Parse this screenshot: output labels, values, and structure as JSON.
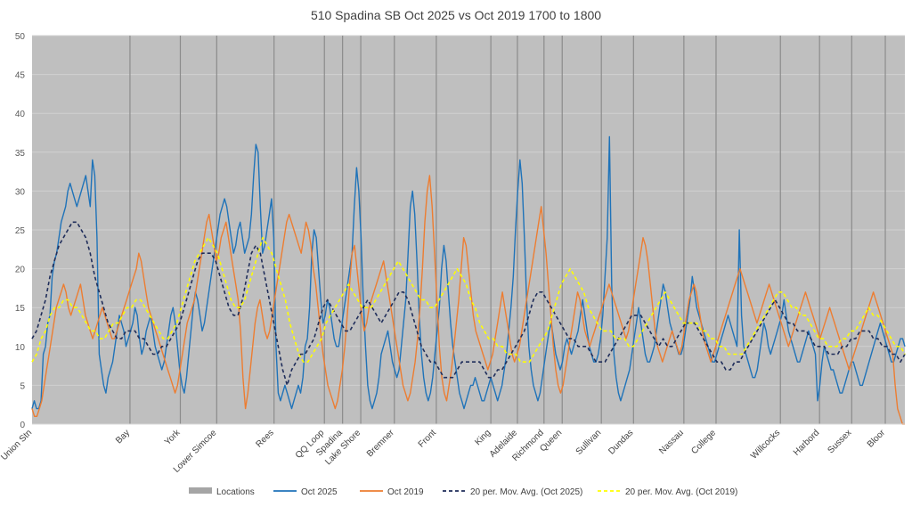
{
  "chart_data": {
    "type": "line",
    "title": "510 Spadina SB Oct 2025 vs Oct 2019 1700 to 1800",
    "xlabel": "",
    "ylabel": "",
    "ylim": [
      0,
      50
    ],
    "yticks": [
      0,
      5,
      10,
      15,
      20,
      25,
      30,
      35,
      40,
      45,
      50
    ],
    "grid": true,
    "legend_position": "bottom",
    "x_index_range": [
      0,
      624
    ],
    "locations": [
      {
        "name": "Union Stn",
        "x": 0
      },
      {
        "name": "Bay",
        "x": 70
      },
      {
        "name": "York",
        "x": 106
      },
      {
        "name": "Lower Simcoe",
        "x": 132
      },
      {
        "name": "Rees",
        "x": 173
      },
      {
        "name": "QQ Loop",
        "x": 209
      },
      {
        "name": "Spadina",
        "x": 222
      },
      {
        "name": "Lake Shore",
        "x": 235
      },
      {
        "name": "Bremner",
        "x": 259
      },
      {
        "name": "Front",
        "x": 289
      },
      {
        "name": "King",
        "x": 328
      },
      {
        "name": "Adelaide",
        "x": 347
      },
      {
        "name": "Richmond",
        "x": 366
      },
      {
        "name": "Queen",
        "x": 379
      },
      {
        "name": "Sullivan",
        "x": 407
      },
      {
        "name": "Dundas",
        "x": 430
      },
      {
        "name": "Nassau",
        "x": 466
      },
      {
        "name": "College",
        "x": 489
      },
      {
        "name": "Willcocks",
        "x": 535
      },
      {
        "name": "Harbord",
        "x": 563
      },
      {
        "name": "Sussex",
        "x": 586
      },
      {
        "name": "Bloor",
        "x": 610
      }
    ],
    "series": [
      {
        "name": "Oct 2025",
        "color": "#1f73b9",
        "values": [
          2,
          3,
          2,
          2,
          3,
          9,
          10,
          13,
          14,
          19,
          21,
          22,
          24,
          26,
          27,
          28,
          30,
          31,
          30,
          29,
          28,
          29,
          30,
          31,
          32,
          30,
          28,
          34,
          32,
          24,
          9,
          7,
          5,
          4,
          6,
          7,
          8,
          10,
          12,
          14,
          13,
          12,
          10,
          11,
          12,
          13,
          15,
          14,
          11,
          9,
          10,
          12,
          13,
          14,
          12,
          10,
          9,
          8,
          7,
          8,
          10,
          12,
          14,
          15,
          13,
          10,
          7,
          5,
          4,
          6,
          9,
          12,
          15,
          17,
          16,
          14,
          12,
          13,
          15,
          17,
          19,
          21,
          23,
          25,
          27,
          28,
          29,
          28,
          26,
          24,
          22,
          23,
          25,
          26,
          24,
          22,
          23,
          24,
          27,
          32,
          36,
          35,
          28,
          22,
          23,
          25,
          27,
          29,
          24,
          10,
          4,
          3,
          4,
          5,
          4,
          3,
          2,
          3,
          4,
          5,
          4,
          6,
          10,
          11,
          15,
          22,
          25,
          24,
          20,
          16,
          13,
          14,
          16,
          15,
          13,
          11,
          10,
          10,
          12,
          14,
          16,
          18,
          20,
          22,
          28,
          33,
          30,
          24,
          16,
          10,
          5,
          3,
          2,
          3,
          4,
          6,
          9,
          10,
          11,
          12,
          10,
          8,
          7,
          6,
          7,
          10,
          13,
          16,
          22,
          28,
          30,
          27,
          21,
          14,
          9,
          6,
          4,
          3,
          4,
          6,
          9,
          12,
          15,
          20,
          23,
          21,
          17,
          13,
          10,
          8,
          6,
          4,
          3,
          2,
          3,
          4,
          5,
          5,
          6,
          5,
          4,
          3,
          3,
          4,
          5,
          6,
          5,
          4,
          3,
          4,
          5,
          7,
          9,
          12,
          15,
          19,
          25,
          30,
          34,
          31,
          24,
          16,
          10,
          7,
          5,
          4,
          3,
          4,
          6,
          8,
          10,
          12,
          13,
          11,
          9,
          8,
          7,
          8,
          10,
          11,
          10,
          9,
          10,
          11,
          12,
          14,
          16,
          14,
          12,
          10,
          9,
          8,
          8,
          9,
          11,
          14,
          19,
          24,
          37,
          18,
          9,
          6,
          4,
          3,
          4,
          5,
          6,
          7,
          9,
          11,
          13,
          15,
          13,
          11,
          9,
          8,
          8,
          9,
          10,
          12,
          14,
          16,
          18,
          17,
          15,
          13,
          12,
          11,
          10,
          9,
          9,
          10,
          12,
          14,
          16,
          19,
          17,
          15,
          14,
          13,
          12,
          11,
          10,
          9,
          8,
          8,
          9,
          10,
          11,
          12,
          13,
          14,
          13,
          12,
          11,
          10,
          25,
          14,
          10,
          9,
          8,
          7,
          6,
          6,
          7,
          9,
          11,
          13,
          12,
          10,
          9,
          10,
          11,
          12,
          13,
          14,
          16,
          14,
          12,
          11,
          10,
          9,
          8,
          8,
          9,
          10,
          11,
          12,
          11,
          10,
          9,
          3,
          5,
          8,
          10,
          9,
          8,
          7,
          7,
          6,
          5,
          4,
          4,
          5,
          6,
          7,
          8,
          8,
          7,
          6,
          5,
          5,
          6,
          7,
          8,
          9,
          10,
          11,
          12,
          13,
          12,
          11,
          10,
          9,
          8,
          8,
          9,
          10,
          11,
          11,
          10
        ]
      },
      {
        "name": "Oct 2019",
        "color": "#ed7d31",
        "values": [
          2,
          1,
          1,
          2,
          3,
          5,
          7,
          9,
          11,
          13,
          15,
          16,
          17,
          18,
          17,
          15,
          14,
          15,
          16,
          17,
          18,
          16,
          14,
          13,
          12,
          11,
          12,
          13,
          14,
          15,
          14,
          13,
          12,
          11,
          11,
          12,
          13,
          14,
          15,
          16,
          17,
          18,
          19,
          20,
          22,
          21,
          19,
          17,
          15,
          14,
          13,
          12,
          11,
          10,
          9,
          8,
          7,
          6,
          5,
          4,
          5,
          7,
          9,
          11,
          13,
          14,
          15,
          16,
          18,
          20,
          22,
          24,
          26,
          27,
          25,
          23,
          21,
          22,
          24,
          25,
          26,
          24,
          22,
          20,
          18,
          16,
          12,
          6,
          2,
          4,
          7,
          10,
          13,
          15,
          16,
          14,
          12,
          11,
          12,
          14,
          16,
          18,
          20,
          22,
          24,
          26,
          27,
          26,
          25,
          24,
          23,
          22,
          24,
          26,
          25,
          23,
          20,
          18,
          15,
          12,
          9,
          7,
          5,
          4,
          3,
          2,
          3,
          5,
          7,
          10,
          14,
          18,
          22,
          23,
          20,
          17,
          14,
          12,
          13,
          15,
          16,
          17,
          18,
          19,
          20,
          21,
          19,
          17,
          15,
          13,
          11,
          9,
          7,
          5,
          4,
          3,
          4,
          6,
          8,
          11,
          15,
          20,
          26,
          30,
          32,
          28,
          22,
          16,
          10,
          6,
          4,
          3,
          5,
          7,
          10,
          13,
          16,
          20,
          24,
          23,
          20,
          17,
          14,
          12,
          11,
          10,
          9,
          8,
          7,
          8,
          9,
          11,
          13,
          15,
          17,
          15,
          13,
          11,
          9,
          8,
          9,
          10,
          12,
          14,
          16,
          18,
          20,
          22,
          24,
          26,
          28,
          25,
          22,
          18,
          14,
          10,
          7,
          5,
          4,
          5,
          7,
          9,
          11,
          13,
          15,
          17,
          16,
          14,
          12,
          11,
          10,
          11,
          12,
          13,
          14,
          15,
          16,
          17,
          18,
          17,
          16,
          15,
          14,
          13,
          12,
          11,
          12,
          14,
          16,
          18,
          20,
          22,
          24,
          23,
          21,
          18,
          15,
          12,
          10,
          9,
          8,
          9,
          10,
          11,
          12,
          11,
          10,
          9,
          10,
          12,
          14,
          16,
          17,
          18,
          17,
          15,
          13,
          11,
          10,
          9,
          8,
          9,
          10,
          11,
          12,
          13,
          14,
          15,
          16,
          17,
          18,
          19,
          20,
          19,
          18,
          17,
          16,
          15,
          14,
          13,
          14,
          15,
          16,
          17,
          18,
          17,
          16,
          15,
          14,
          13,
          12,
          11,
          10,
          11,
          12,
          13,
          14,
          15,
          16,
          17,
          16,
          15,
          14,
          13,
          12,
          11,
          12,
          13,
          14,
          15,
          14,
          13,
          12,
          11,
          10,
          9,
          8,
          7,
          8,
          9,
          10,
          11,
          12,
          13,
          14,
          15,
          16,
          17,
          16,
          15,
          14,
          13,
          12,
          11,
          10,
          9,
          5,
          2,
          1,
          0,
          0
        ]
      },
      {
        "name": "20 per. Mov. Avg. (Oct 2025)",
        "color": "#1f2d5a",
        "dashed": true,
        "values": [
          11,
          12,
          14,
          16,
          19,
          21,
          23,
          24,
          25,
          26,
          26,
          25,
          24,
          22,
          19,
          17,
          15,
          13,
          12,
          11,
          11,
          12,
          12,
          12,
          11,
          11,
          10,
          9,
          9,
          10,
          10,
          11,
          12,
          13,
          15,
          17,
          19,
          21,
          22,
          22,
          22,
          21,
          19,
          17,
          15,
          14,
          14,
          16,
          19,
          22,
          23,
          22,
          19,
          16,
          13,
          10,
          7,
          5,
          7,
          8,
          9,
          9,
          10,
          11,
          13,
          15,
          16,
          15,
          14,
          13,
          12,
          12,
          13,
          14,
          15,
          16,
          15,
          14,
          13,
          14,
          15,
          16,
          17,
          17,
          16,
          14,
          12,
          10,
          9,
          8,
          8,
          7,
          6,
          6,
          6,
          7,
          8,
          8,
          8,
          8,
          8,
          7,
          6,
          6,
          7,
          7,
          8,
          9,
          10,
          11,
          12,
          14,
          16,
          17,
          17,
          16,
          15,
          14,
          13,
          12,
          11,
          11,
          10,
          10,
          10,
          9,
          8,
          8,
          8,
          9,
          10,
          11,
          12,
          13,
          14,
          14,
          14,
          13,
          12,
          11,
          10,
          11,
          10,
          10,
          11,
          12,
          13,
          13,
          13,
          12,
          11,
          10,
          9,
          8,
          8,
          7,
          7,
          8,
          8,
          9,
          10,
          11,
          12,
          13,
          14,
          15,
          16,
          15,
          14,
          13,
          13,
          12,
          12,
          12,
          11,
          10,
          10,
          10,
          9,
          9,
          9,
          10,
          10,
          11,
          11,
          12,
          12,
          12,
          11,
          11,
          10,
          10,
          9,
          9,
          8,
          9
        ]
      },
      {
        "name": "20 per. Mov. Avg. (Oct 2019)",
        "color": "#ffff00",
        "dashed": true,
        "values": [
          8,
          9,
          11,
          12,
          14,
          15,
          15,
          16,
          16,
          15,
          15,
          14,
          13,
          12,
          12,
          11,
          11,
          12,
          13,
          13,
          14,
          15,
          15,
          16,
          16,
          15,
          14,
          13,
          12,
          11,
          11,
          12,
          13,
          15,
          17,
          19,
          21,
          22,
          23,
          24,
          23,
          22,
          20,
          18,
          16,
          15,
          15,
          16,
          18,
          20,
          22,
          24,
          23,
          22,
          20,
          18,
          16,
          13,
          11,
          9,
          8,
          8,
          9,
          10,
          11,
          13,
          14,
          15,
          16,
          17,
          18,
          17,
          16,
          15,
          15,
          15,
          16,
          17,
          18,
          19,
          20,
          21,
          20,
          19,
          18,
          17,
          16,
          16,
          15,
          15,
          16,
          17,
          18,
          19,
          20,
          19,
          18,
          16,
          15,
          13,
          12,
          11,
          11,
          10,
          10,
          9,
          9,
          9,
          8,
          8,
          8,
          9,
          10,
          11,
          12,
          14,
          16,
          18,
          19,
          20,
          19,
          18,
          17,
          15,
          14,
          13,
          12,
          12,
          12,
          11,
          11,
          11,
          10,
          10,
          11,
          12,
          13,
          14,
          15,
          16,
          17,
          16,
          15,
          14,
          13,
          13,
          13,
          13,
          12,
          12,
          11,
          11,
          10,
          10,
          9,
          9,
          9,
          9,
          10,
          11,
          12,
          13,
          14,
          15,
          16,
          17,
          17,
          16,
          15,
          15,
          14,
          14,
          13,
          12,
          11,
          11,
          10,
          10,
          10,
          11,
          11,
          12,
          12,
          13,
          14,
          15,
          14,
          14,
          13,
          12,
          11,
          10,
          10,
          9
        ]
      }
    ]
  },
  "legend": {
    "items": [
      {
        "label": "Locations",
        "color": "#a5a5a5",
        "style": "bar"
      },
      {
        "label": "Oct 2025",
        "color": "#1f73b9",
        "style": "line"
      },
      {
        "label": "Oct 2019",
        "color": "#ed7d31",
        "style": "line"
      },
      {
        "label": "20 per. Mov. Avg. (Oct 2025)",
        "color": "#1f2d5a",
        "style": "dash"
      },
      {
        "label": "20 per. Mov. Avg. (Oct 2019)",
        "color": "#ffff00",
        "style": "dash"
      }
    ]
  }
}
